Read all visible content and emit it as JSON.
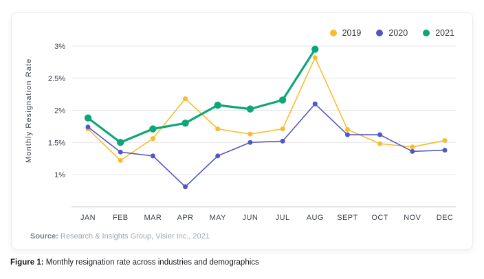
{
  "colors": {
    "grid": "#e4e4e4",
    "axis": "#cfcfcf",
    "accent_2019": "#fabc2e",
    "accent_2020": "#5257c5",
    "accent_2021": "#0da678"
  },
  "chart_data": {
    "type": "line",
    "title": "",
    "xlabel": "",
    "ylabel": "Monthly Resignation Rate",
    "grid": true,
    "legend_position": "top-right",
    "ylim": [
      0.6,
      3.2
    ],
    "categories": [
      "JAN",
      "FEB",
      "MAR",
      "APR",
      "MAY",
      "JUN",
      "JUL",
      "AUG",
      "SEPT",
      "OCT",
      "NOV",
      "DEC"
    ],
    "y_ticks": [
      {
        "value": 3,
        "label": "3%"
      },
      {
        "value": 2.5,
        "label": "2.5%"
      },
      {
        "value": 2,
        "label": "2%"
      },
      {
        "value": 1.5,
        "label": "1.5%"
      },
      {
        "value": 1,
        "label": "1%"
      }
    ],
    "series": [
      {
        "name": "2019",
        "color": "#fabc2e",
        "emphasis": false,
        "values": [
          1.71,
          1.22,
          1.56,
          2.18,
          1.71,
          1.63,
          1.71,
          2.82,
          1.7,
          1.48,
          1.43,
          1.53
        ]
      },
      {
        "name": "2020",
        "color": "#5257c5",
        "emphasis": false,
        "values": [
          1.74,
          1.35,
          1.29,
          0.81,
          1.29,
          1.5,
          1.52,
          2.1,
          1.62,
          1.62,
          1.36,
          1.38
        ]
      },
      {
        "name": "2021",
        "color": "#0da678",
        "emphasis": true,
        "values": [
          1.88,
          1.5,
          1.71,
          1.8,
          2.08,
          2.02,
          2.16,
          2.95
        ]
      }
    ]
  },
  "source": {
    "label": "Source:",
    "text": " Research & Insights Group, Visier Inc., 2021"
  },
  "caption": {
    "label": "Figure 1:",
    "text": " Monthly resignation rate across industries and demographics"
  }
}
